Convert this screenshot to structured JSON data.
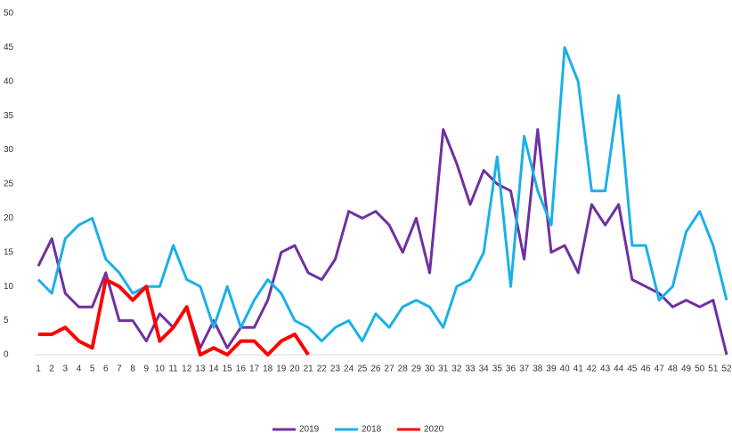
{
  "chart_data": {
    "type": "line",
    "categories": [
      "1",
      "2",
      "3",
      "4",
      "5",
      "6",
      "7",
      "8",
      "9",
      "10",
      "11",
      "12",
      "13",
      "14",
      "15",
      "16",
      "17",
      "18",
      "19",
      "20",
      "21",
      "22",
      "23",
      "24",
      "25",
      "26",
      "27",
      "28",
      "29",
      "30",
      "31",
      "32",
      "33",
      "34",
      "35",
      "36",
      "37",
      "38",
      "39",
      "40",
      "41",
      "42",
      "43",
      "44",
      "45",
      "46",
      "47",
      "48",
      "49",
      "50",
      "51",
      "52"
    ],
    "series": [
      {
        "name": "2019",
        "color": "#7030a0",
        "values": [
          13,
          17,
          9,
          7,
          7,
          12,
          5,
          5,
          2,
          6,
          4,
          7,
          1,
          5,
          1,
          4,
          4,
          8,
          15,
          16,
          12,
          11,
          14,
          21,
          20,
          21,
          19,
          15,
          20,
          12,
          33,
          28,
          22,
          27,
          25,
          24,
          14,
          33,
          15,
          16,
          12,
          22,
          19,
          22,
          11,
          10,
          9,
          7,
          8,
          7,
          8,
          0
        ]
      },
      {
        "name": "2018",
        "color": "#1ab0e8",
        "values": [
          11,
          9,
          17,
          19,
          20,
          14,
          12,
          9,
          10,
          10,
          16,
          11,
          10,
          4,
          10,
          4,
          8,
          11,
          9,
          5,
          4,
          2,
          4,
          5,
          2,
          6,
          4,
          7,
          8,
          7,
          4,
          10,
          11,
          15,
          29,
          10,
          32,
          24,
          19,
          45,
          40,
          24,
          24,
          38,
          16,
          16,
          8,
          10,
          18,
          21,
          16,
          8
        ]
      },
      {
        "name": "2020",
        "color": "#ff0000",
        "values": [
          3,
          3,
          4,
          2,
          1,
          11,
          10,
          8,
          10,
          2,
          4,
          7,
          0,
          1,
          0,
          2,
          2,
          0,
          2,
          3,
          0,
          null,
          null,
          null,
          null,
          null,
          null,
          null,
          null,
          null,
          null,
          null,
          null,
          null,
          null,
          null,
          null,
          null,
          null,
          null,
          null,
          null,
          null,
          null,
          null,
          null,
          null,
          null,
          null,
          null,
          null,
          null
        ]
      }
    ],
    "ylim": [
      0,
      50
    ],
    "yticks": [
      0,
      5,
      10,
      15,
      20,
      25,
      30,
      35,
      40,
      45,
      50
    ],
    "legend": "bottom"
  }
}
